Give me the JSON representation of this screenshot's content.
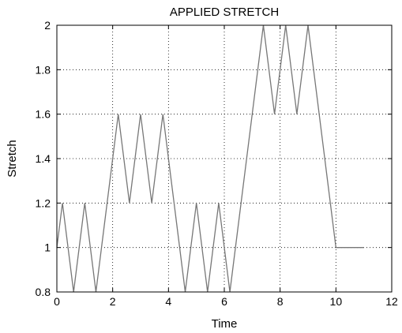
{
  "chart_data": {
    "type": "line",
    "title": "APPLIED STRETCH",
    "xlabel": "Time",
    "ylabel": "Stretch",
    "xlim": [
      0,
      12
    ],
    "ylim": [
      0.8,
      2
    ],
    "xticks": [
      0,
      2,
      4,
      6,
      8,
      10,
      12
    ],
    "yticks": [
      0.8,
      1,
      1.2,
      1.4,
      1.6,
      1.8,
      2
    ],
    "grid": true,
    "series": [
      {
        "color": "#777777",
        "x": [
          0,
          0.2,
          0.6,
          1.0,
          1.4,
          2.2,
          2.6,
          3.0,
          3.4,
          3.8,
          4.6,
          5.0,
          5.4,
          5.8,
          6.2,
          7.4,
          7.8,
          8.2,
          8.6,
          9.0,
          10.0,
          11.0
        ],
        "y": [
          1.0,
          1.2,
          0.8,
          1.2,
          0.8,
          1.6,
          1.2,
          1.6,
          1.2,
          1.6,
          0.8,
          1.2,
          0.8,
          1.2,
          0.8,
          2.0,
          1.6,
          2.0,
          1.6,
          2.0,
          1.0,
          1.0
        ]
      }
    ]
  }
}
